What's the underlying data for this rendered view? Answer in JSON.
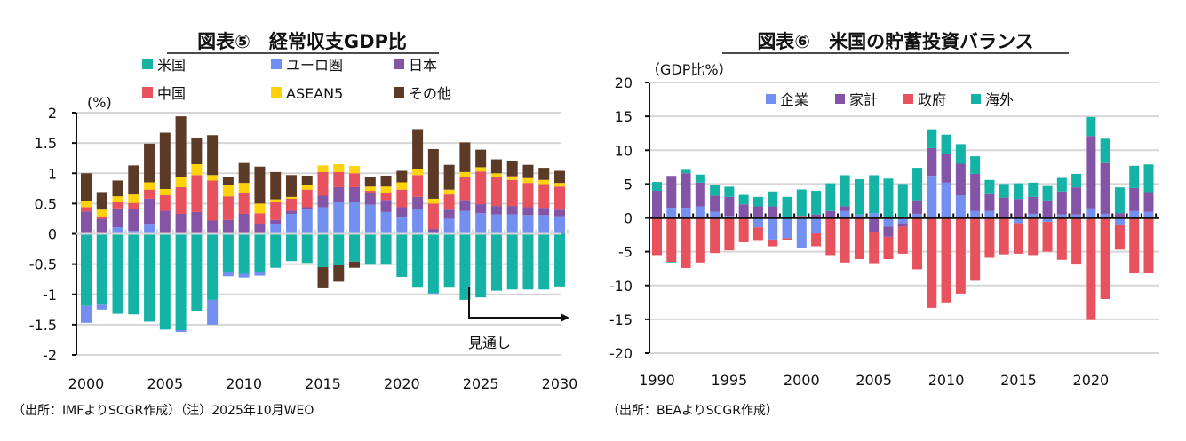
{
  "colors": {
    "us": "#14b3a6",
    "euro": "#7390f0",
    "japan": "#8454a6",
    "china": "#e8525e",
    "asean5": "#ffd20a",
    "other": "#5c3a28",
    "corp": "#7390f0",
    "household": "#8454a6",
    "gov": "#e8525e",
    "foreign": "#14b3a6"
  },
  "chart_data": [
    {
      "type": "bar",
      "stacked": true,
      "title": "図表⑤　経常収支GDP比",
      "ylabel": "(%)",
      "ylim": [
        -2,
        2
      ],
      "yticks": [
        "2",
        "1.5",
        "1",
        "0.5",
        "0",
        "-0.5",
        "-1",
        "-1.5",
        "-2"
      ],
      "ytick_values": [
        2,
        1.5,
        1,
        0.5,
        0,
        -0.5,
        -1,
        -1.5,
        -2
      ],
      "xticks": [
        "2000",
        "2005",
        "2010",
        "2015",
        "2020",
        "2025",
        "2030"
      ],
      "x": [
        2000,
        2001,
        2002,
        2003,
        2004,
        2005,
        2006,
        2007,
        2008,
        2009,
        2010,
        2011,
        2012,
        2013,
        2014,
        2015,
        2016,
        2017,
        2018,
        2019,
        2020,
        2021,
        2022,
        2023,
        2024,
        2025,
        2026,
        2027,
        2028,
        2029,
        2030
      ],
      "grid": true,
      "legend_position": "top",
      "annotation": "見通し",
      "forecast_from": 2025,
      "series": [
        {
          "name": "米国",
          "key": "us",
          "values": [
            -1.19,
            -1.17,
            -1.32,
            -1.33,
            -1.45,
            -1.58,
            -1.59,
            -1.27,
            -1.09,
            -0.63,
            -0.66,
            -0.63,
            -0.56,
            -0.45,
            -0.48,
            -0.55,
            -0.52,
            -0.46,
            -0.51,
            -0.51,
            -0.71,
            -0.89,
            -0.98,
            -0.89,
            -1.09,
            -1.05,
            -0.94,
            -0.92,
            -0.92,
            -0.92,
            -0.87
          ]
        },
        {
          "name": "ユーロ圏",
          "key": "euro",
          "values": [
            -0.28,
            -0.08,
            0.11,
            0.05,
            0.15,
            0,
            -0.03,
            0,
            -0.41,
            -0.07,
            -0.06,
            -0.06,
            0.16,
            0.33,
            0.4,
            0.44,
            0.52,
            0.52,
            0.48,
            0.36,
            0.27,
            0.41,
            -0.01,
            0.25,
            0.38,
            0.34,
            0.32,
            0.32,
            0.31,
            0.31,
            0.29
          ]
        },
        {
          "name": "日本",
          "key": "japan",
          "values": [
            0.37,
            0.25,
            0.31,
            0.36,
            0.43,
            0.38,
            0.33,
            0.36,
            0.22,
            0.23,
            0.33,
            0.16,
            0.07,
            0.05,
            0.04,
            0.19,
            0.25,
            0.25,
            0.2,
            0.2,
            0.17,
            0.2,
            0.08,
            0.15,
            0.18,
            0.15,
            0.14,
            0.14,
            0.13,
            0.12,
            0.11
          ]
        },
        {
          "name": "中国",
          "key": "china",
          "values": [
            0.07,
            0.04,
            0.1,
            0.1,
            0.15,
            0.26,
            0.44,
            0.61,
            0.66,
            0.39,
            0.35,
            0.18,
            0.29,
            0.2,
            0.29,
            0.39,
            0.25,
            0.23,
            0.03,
            0.12,
            0.29,
            0.36,
            0.42,
            0.25,
            0.38,
            0.54,
            0.48,
            0.43,
            0.4,
            0.39,
            0.38
          ]
        },
        {
          "name": "ASEAN5",
          "key": "asean5",
          "values": [
            0.1,
            0.11,
            0.1,
            0.14,
            0.12,
            0.1,
            0.17,
            0.18,
            0.09,
            0.18,
            0.16,
            0.16,
            0.05,
            0.03,
            0.08,
            0.11,
            0.13,
            0.12,
            0.07,
            0.1,
            0.12,
            0.1,
            0.08,
            0.08,
            0.08,
            0.07,
            0.06,
            0.06,
            0.08,
            0.07,
            0.06
          ]
        },
        {
          "name": "その他",
          "key": "other",
          "values": [
            0.46,
            0.29,
            0.26,
            0.48,
            0.64,
            0.93,
            1.0,
            0.44,
            0.66,
            0.14,
            0.33,
            0.61,
            0.45,
            0.36,
            0.15,
            -0.35,
            -0.27,
            -0.1,
            0.16,
            0.18,
            0.19,
            0.66,
            0.82,
            0.41,
            0.49,
            0.29,
            0.23,
            0.25,
            0.22,
            0.2,
            0.2
          ]
        }
      ],
      "note": "（出所：IMFよりSCGR作成）（注）2025年10月WEO"
    },
    {
      "type": "bar",
      "stacked": true,
      "title": "図表⑥　米国の貯蓄投資バランス",
      "ylabel": "（GDP比%）",
      "ylim": [
        -20,
        20
      ],
      "yticks": [
        "20",
        "15",
        "10",
        "5",
        "0",
        "-5",
        "-10",
        "-15",
        "-20"
      ],
      "ytick_values": [
        20,
        15,
        10,
        5,
        0,
        -5,
        -10,
        -15,
        -20
      ],
      "xticks": [
        "1990",
        "1995",
        "2000",
        "2005",
        "2010",
        "2015",
        "2020"
      ],
      "x": [
        1990,
        1991,
        1992,
        1993,
        1994,
        1995,
        1996,
        1997,
        1998,
        1999,
        2000,
        2001,
        2002,
        2003,
        2004,
        2005,
        2006,
        2007,
        2008,
        2009,
        2010,
        2011,
        2012,
        2013,
        2014,
        2015,
        2016,
        2017,
        2018,
        2019,
        2020,
        2021,
        2022,
        2023,
        2024
      ],
      "grid": true,
      "legend_position": "top",
      "series": [
        {
          "name": "企業",
          "key": "corp",
          "values": [
            0,
            1.5,
            1.5,
            1.7,
            0.9,
            0.3,
            0,
            -1.4,
            -3.2,
            -3.0,
            -4.5,
            -2.3,
            0,
            1.0,
            0.5,
            0.7,
            -1.3,
            -0.8,
            0.6,
            6.2,
            5.2,
            3.3,
            1.0,
            1.0,
            0,
            -0.8,
            0.6,
            -0.6,
            0.5,
            0.5,
            1.4,
            0.6,
            -1.1,
            1.0,
            0.9
          ]
        },
        {
          "name": "家計",
          "key": "household",
          "values": [
            4.0,
            4.7,
            5.1,
            3.5,
            2.4,
            2.8,
            2.0,
            1.7,
            1.7,
            0.1,
            0,
            0.5,
            1.0,
            0.7,
            0,
            -2.1,
            -1.5,
            -0.5,
            2.0,
            4.1,
            4.2,
            4.7,
            5.5,
            2.5,
            3.0,
            2.8,
            2.5,
            2.6,
            3.4,
            4.0,
            10.7,
            7.5,
            0.7,
            3.4,
            2.9
          ]
        },
        {
          "name": "政府",
          "key": "gov",
          "values": [
            -5.5,
            -6.5,
            -7.4,
            -6.6,
            -5.2,
            -4.8,
            -3.6,
            -2.0,
            -1.0,
            -0.3,
            0.3,
            -1.9,
            -5.5,
            -6.6,
            -6.1,
            -4.6,
            -3.3,
            -4.0,
            -7.6,
            -13.3,
            -12.5,
            -11.2,
            -9.3,
            -5.9,
            -5.4,
            -4.5,
            -5.5,
            -4.4,
            -6.2,
            -6.9,
            -15.1,
            -12.0,
            -3.6,
            -8.2,
            -8.2
          ]
        },
        {
          "name": "海外",
          "key": "foreign",
          "values": [
            1.3,
            -0.1,
            0.5,
            1.2,
            1.6,
            1.5,
            1.4,
            1.4,
            2.2,
            3.0,
            3.9,
            3.5,
            4.1,
            4.6,
            5.2,
            5.6,
            5.8,
            5.0,
            4.8,
            2.8,
            2.9,
            2.9,
            2.6,
            2.1,
            2.0,
            2.3,
            2.1,
            2.1,
            2.0,
            2.0,
            2.8,
            3.6,
            3.8,
            3.3,
            4.1
          ]
        }
      ],
      "note": "（出所：BEAよりSCGR作成）"
    }
  ]
}
